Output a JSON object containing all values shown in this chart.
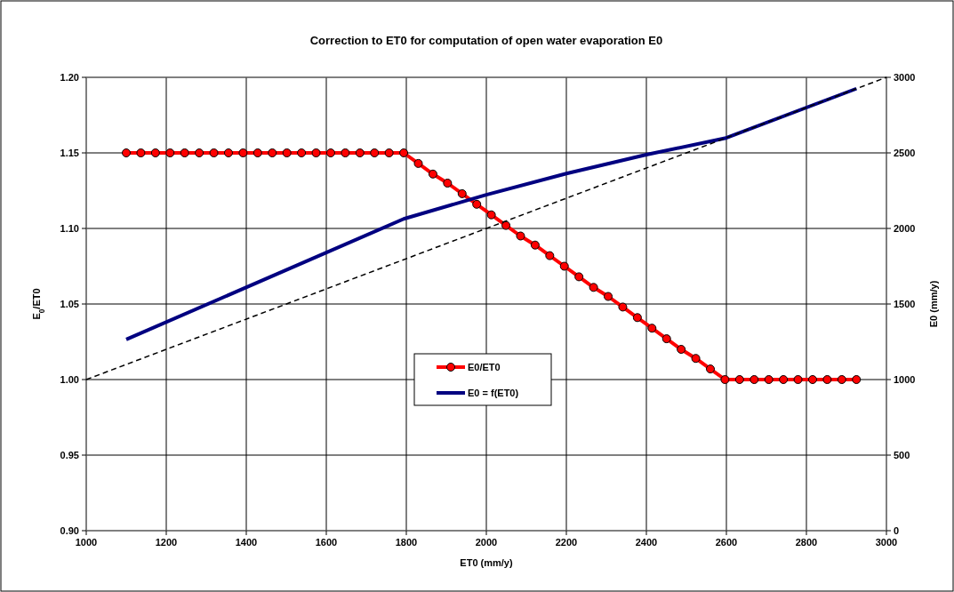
{
  "chart_data": {
    "type": "line",
    "title": "Correction to ET0 for computation of open water evaporation E0",
    "xlabel": "ET0 (mm/y)",
    "ylabel": "E$_{0}$/ET0",
    "y2label": "E0 (mm/y)",
    "xlim": [
      1000,
      3000
    ],
    "xticks": [
      1000,
      1200,
      1400,
      1600,
      1800,
      2000,
      2200,
      2400,
      2600,
      2800,
      3000
    ],
    "ylim": [
      0.9,
      1.2
    ],
    "yticks": [
      {
        "value": 0.9,
        "label": "0.90"
      },
      {
        "value": 0.95,
        "label": "0.95"
      },
      {
        "value": 1.0,
        "label": "1.00"
      },
      {
        "value": 1.05,
        "label": "1.05"
      },
      {
        "value": 1.1,
        "label": "1.10"
      },
      {
        "value": 1.15,
        "label": "1.15"
      },
      {
        "value": 1.2,
        "label": "1.20"
      }
    ],
    "y2lim": [
      0,
      3000
    ],
    "y2ticks": [
      0,
      500,
      1000,
      1500,
      2000,
      2500,
      3000
    ],
    "grid": true,
    "legend": "center",
    "series": [
      {
        "name": "E0/ET0",
        "color": "#ff0000",
        "marker": "circle",
        "x": [
          1100,
          1136.5,
          1173,
          1209.5,
          1246,
          1282.5,
          1319,
          1355.5,
          1392,
          1428.5,
          1465,
          1501.5,
          1538,
          1574.5,
          1611,
          1647.5,
          1684,
          1720.5,
          1757,
          1793.5,
          1830,
          1866.5,
          1903,
          1939.5,
          1976,
          2012.5,
          2049,
          2085.5,
          2122,
          2158.5,
          2195,
          2231.5,
          2268,
          2304.5,
          2341,
          2377.5,
          2414,
          2450.5,
          2487,
          2523.5,
          2560,
          2596.5,
          2633,
          2669.5,
          2706,
          2742.5,
          2779,
          2815.5,
          2852,
          2888.5,
          2925
        ],
        "values": [
          1.15,
          1.15,
          1.15,
          1.15,
          1.15,
          1.15,
          1.15,
          1.15,
          1.15,
          1.15,
          1.15,
          1.15,
          1.15,
          1.15,
          1.15,
          1.15,
          1.15,
          1.15,
          1.15,
          1.15,
          1.143,
          1.136,
          1.13,
          1.123,
          1.116,
          1.109,
          1.102,
          1.095,
          1.089,
          1.082,
          1.075,
          1.068,
          1.061,
          1.055,
          1.048,
          1.041,
          1.034,
          1.027,
          1.02,
          1.014,
          1.007,
          1.0,
          1.0,
          1.0,
          1.0,
          1.0,
          1.0,
          1.0,
          1.0,
          1.0,
          1.0
        ]
      },
      {
        "name": "E0 = f(ET0)",
        "color": "#000080",
        "axis": "y2",
        "x": [
          1100,
          1793.5,
          2000,
          2200,
          2400,
          2596.5,
          2925
        ],
        "values": [
          1265,
          2063,
          2223,
          2363,
          2488,
          2597,
          2925
        ]
      },
      {
        "color": "#000000",
        "axis": "y2",
        "line_style": "dashed",
        "x": [
          1000,
          3000
        ],
        "values": [
          1000,
          3000
        ]
      }
    ]
  }
}
